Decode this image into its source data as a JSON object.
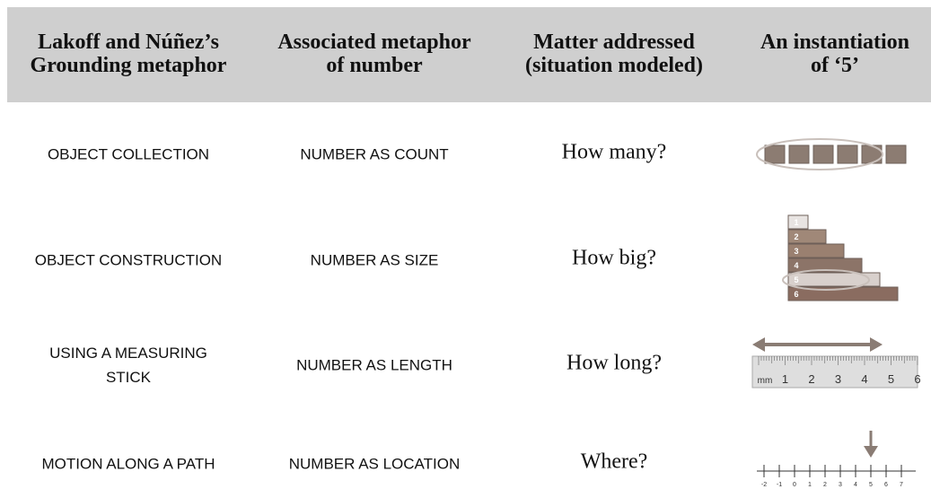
{
  "header": [
    [
      "Lakoff and Núñez’s",
      "Grounding metaphor"
    ],
    [
      "Associated metaphor",
      "of number"
    ],
    [
      "Matter addressed",
      "(situation modeled)"
    ],
    [
      "An instantiation",
      "of ‘5’"
    ]
  ],
  "rows": [
    {
      "grounding": [
        "OBJECT COLLECTION"
      ],
      "metaphor": "NUMBER AS COUNT",
      "question": "How many?",
      "figure_labels": []
    },
    {
      "grounding": [
        "OBJECT CONSTRUCTION"
      ],
      "metaphor": "NUMBER AS SIZE",
      "question": "How big?",
      "figure_labels": [
        "1",
        "2",
        "3",
        "4",
        "5",
        "6"
      ]
    },
    {
      "grounding": [
        "USING A MEASURING",
        "STICK"
      ],
      "metaphor": "NUMBER AS LENGTH",
      "question": "How long?",
      "figure_labels": [
        "mm",
        "1",
        "2",
        "3",
        "4",
        "5",
        "6"
      ]
    },
    {
      "grounding": [
        "MOTION ALONG A PATH"
      ],
      "metaphor": "NUMBER AS LOCATION",
      "question": "Where?",
      "figure_labels": [
        "-2",
        "-1",
        "0",
        "1",
        "2",
        "3",
        "4",
        "5",
        "6",
        "7"
      ]
    }
  ]
}
